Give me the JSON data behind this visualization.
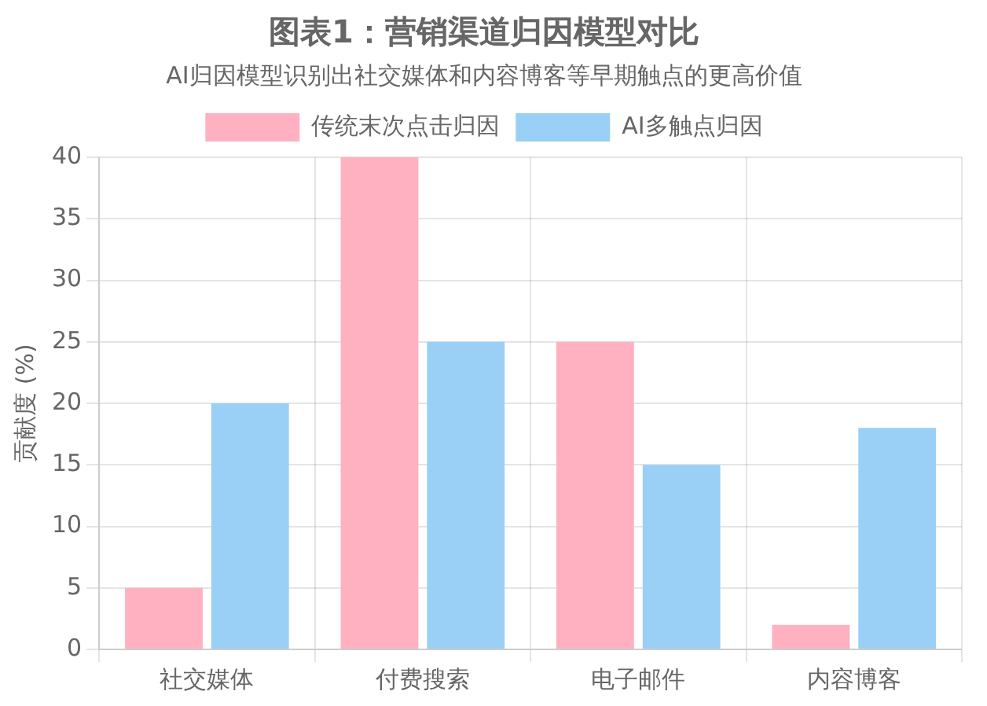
{
  "chart_data": {
    "type": "bar",
    "title": "图表1：营销渠道归因模型对比",
    "subtitle": "AI归因模型识别出社交媒体和内容博客等早期触点的更高价值",
    "ylabel": "贡献度 (%)",
    "categories": [
      "社交媒体",
      "付费搜索",
      "电子邮件",
      "内容博客"
    ],
    "series": [
      {
        "name": "传统末次点击归因",
        "color": "#ffb1c1",
        "values": [
          5,
          40,
          25,
          2
        ]
      },
      {
        "name": "AI多触点归因",
        "color": "#9ad0f5",
        "values": [
          20,
          25,
          15,
          18
        ]
      }
    ],
    "ylim": [
      0,
      40
    ],
    "yticks": [
      0,
      5,
      10,
      15,
      20,
      25,
      30,
      35,
      40
    ],
    "grid": true,
    "legend": "top"
  }
}
